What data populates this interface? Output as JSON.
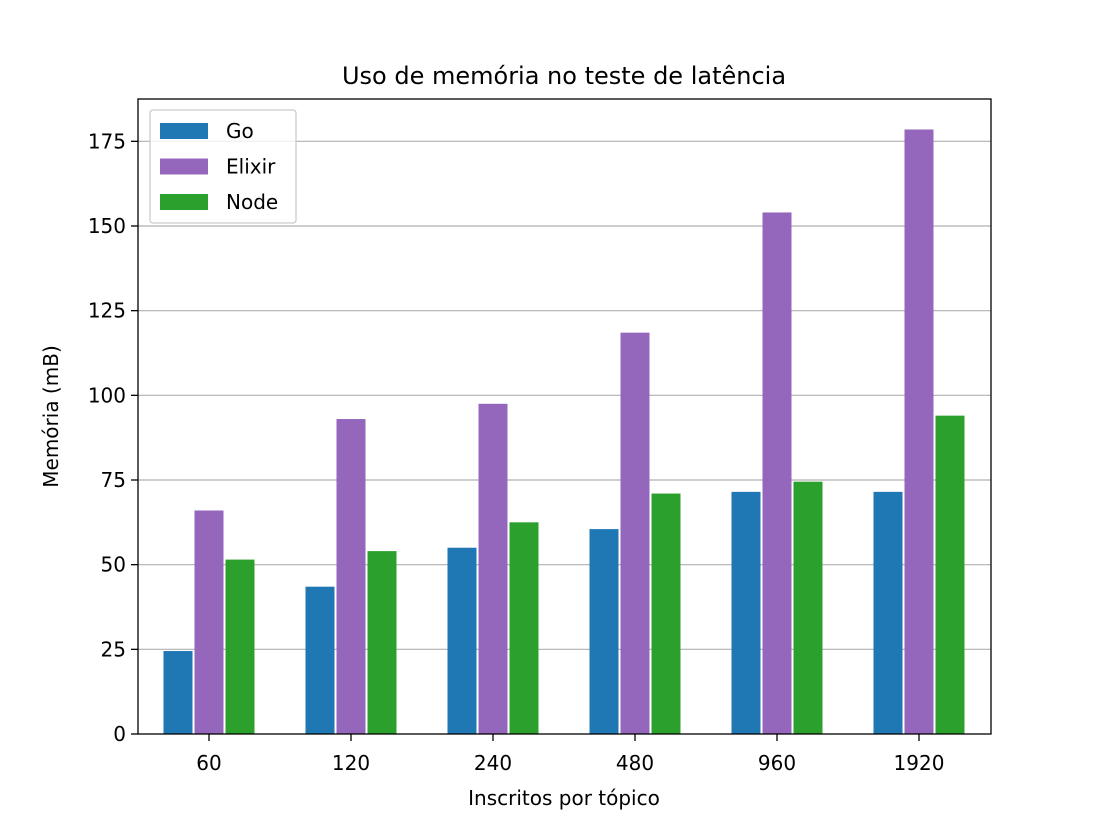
{
  "chart_data": {
    "type": "bar",
    "title": "Uso de memória no teste de latência",
    "xlabel": "Inscritos por tópico",
    "ylabel": "Memória (mB)",
    "categories": [
      "60",
      "120",
      "240",
      "480",
      "960",
      "1920"
    ],
    "series": [
      {
        "name": "Go",
        "color": "#1f77b4",
        "values": [
          24.5,
          43.5,
          55.0,
          60.5,
          71.5,
          71.5
        ]
      },
      {
        "name": "Elixir",
        "color": "#9467bd",
        "values": [
          66.0,
          93.0,
          97.5,
          118.5,
          154.0,
          178.5
        ]
      },
      {
        "name": "Node",
        "color": "#2ca02c",
        "values": [
          51.5,
          54.0,
          62.5,
          71.0,
          74.5,
          94.0
        ]
      }
    ],
    "ylim": [
      0,
      187.5
    ],
    "yticks": [
      0,
      25,
      50,
      75,
      100,
      125,
      150,
      175
    ],
    "grid": "y-major",
    "legend_position": "top-left"
  }
}
